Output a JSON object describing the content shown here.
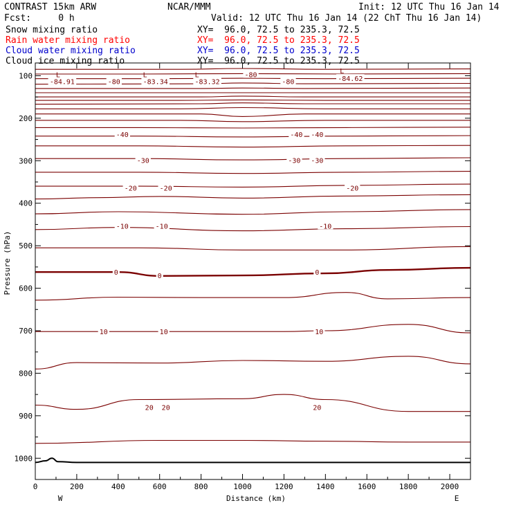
{
  "header": {
    "title": "CONTRAST 15km ARW",
    "org": "NCAR/MMM",
    "init": "Init: 12 UTC Thu 16 Jan 14",
    "fcst": "Fcst:     0 h",
    "valid": "Valid: 12 UTC Thu 16 Jan 14 (22 ChT Thu 16 Jan 14)"
  },
  "fields": [
    {
      "name": "Snow mixing ratio",
      "xy": "XY=  96.0, 72.5 to 235.3, 72.5",
      "color": "#000000"
    },
    {
      "name": "Rain water mixing ratio",
      "xy": "XY=  96.0, 72.5 to 235.3, 72.5",
      "color": "#ff0000"
    },
    {
      "name": "Cloud water mixing ratio",
      "xy": "XY=  96.0, 72.5 to 235.3, 72.5",
      "color": "#0000cc"
    },
    {
      "name": "Cloud ice mixing ratio",
      "xy": "XY=  96.0, 72.5 to 235.3, 72.5",
      "color": "#000000"
    }
  ],
  "chart_data": {
    "type": "line",
    "title": "",
    "xlabel": "Distance (km)",
    "ylabel": "Pressure (hPa)",
    "xlim": [
      0,
      2100
    ],
    "ylim": [
      1050,
      70
    ],
    "xticks": [
      "0",
      "200",
      "400",
      "600",
      "800",
      "1000",
      "1200",
      "1400",
      "1600",
      "1800",
      "2000"
    ],
    "yticks": [
      "100",
      "200",
      "300",
      "400",
      "500",
      "600",
      "700",
      "800",
      "900",
      "1000"
    ],
    "endpoints": {
      "west": "W",
      "east": "E"
    },
    "contour_color": "#7a0000",
    "terrain_color": "#000000",
    "isotherms": [
      {
        "pressure_x": [
          0,
          1000,
          2100
        ],
        "pressure_y": [
          70,
          70,
          70
        ]
      },
      {
        "pressure_x": [
          0,
          700,
          1000,
          1400,
          2100
        ],
        "pressure_y": [
          85,
          85,
          83,
          85,
          84
        ]
      },
      {
        "pressure_x": [
          0,
          500,
          1000,
          1500,
          2100
        ],
        "pressure_y": [
          96,
          96,
          95,
          96,
          95
        ]
      },
      {
        "pressure_x": [
          0,
          600,
          1000,
          1400,
          2100
        ],
        "pressure_y": [
          107,
          107,
          106,
          107,
          106
        ]
      },
      {
        "pressure_x": [
          0,
          800,
          1000,
          1300,
          2100
        ],
        "pressure_y": [
          120,
          119,
          117,
          119,
          118
        ]
      },
      {
        "pressure_x": [
          0,
          800,
          1000,
          1300,
          2100
        ],
        "pressure_y": [
          130,
          130,
          129,
          130,
          129
        ]
      },
      {
        "pressure_x": [
          0,
          600,
          1000,
          1400,
          2100
        ],
        "pressure_y": [
          140,
          140,
          140,
          140,
          140
        ]
      },
      {
        "pressure_x": [
          0,
          800,
          1000,
          1300,
          2100
        ],
        "pressure_y": [
          150,
          150,
          148,
          150,
          150
        ]
      },
      {
        "pressure_x": [
          0,
          700,
          1000,
          1400,
          2100
        ],
        "pressure_y": [
          158,
          158,
          157,
          158,
          158
        ]
      },
      {
        "pressure_x": [
          0,
          800,
          1000,
          1300,
          2100
        ],
        "pressure_y": [
          167,
          166,
          164,
          166,
          166
        ]
      },
      {
        "pressure_x": [
          0,
          700,
          1000,
          1400,
          2100
        ],
        "pressure_y": [
          178,
          178,
          175,
          178,
          178
        ]
      },
      {
        "pressure_x": [
          0,
          800,
          1000,
          1300,
          2100
        ],
        "pressure_y": [
          190,
          190,
          196,
          190,
          190
        ]
      },
      {
        "pressure_x": [
          0,
          700,
          1000,
          1400,
          2100
        ],
        "pressure_y": [
          205,
          205,
          208,
          205,
          205
        ]
      },
      {
        "pressure_x": [
          0,
          500,
          1000,
          1500,
          2100
        ],
        "pressure_y": [
          222,
          222,
          223,
          222,
          221
        ]
      },
      {
        "pressure_x": [
          0,
          500,
          1000,
          1500,
          2100
        ],
        "pressure_y": [
          242,
          242,
          244,
          242,
          241
        ]
      },
      {
        "pressure_x": [
          0,
          500,
          1000,
          1500,
          2100
        ],
        "pressure_y": [
          265,
          265,
          268,
          265,
          264
        ]
      },
      {
        "pressure_x": [
          0,
          500,
          1000,
          1500,
          2100
        ],
        "pressure_y": [
          295,
          295,
          298,
          295,
          293
        ]
      },
      {
        "pressure_x": [
          0,
          500,
          1000,
          1500,
          2100
        ],
        "pressure_y": [
          327,
          327,
          330,
          327,
          325
        ]
      },
      {
        "pressure_x": [
          0,
          500,
          1000,
          1500,
          2100
        ],
        "pressure_y": [
          360,
          360,
          362,
          358,
          355
        ]
      },
      {
        "pressure_x": [
          0,
          300,
          600,
          1000,
          1500,
          2100
        ],
        "pressure_y": [
          390,
          387,
          384,
          388,
          383,
          380
        ]
      },
      {
        "pressure_x": [
          0,
          400,
          1000,
          1500,
          2100
        ],
        "pressure_y": [
          425,
          420,
          426,
          420,
          415
        ]
      },
      {
        "pressure_x": [
          0,
          400,
          1000,
          1500,
          2100
        ],
        "pressure_y": [
          462,
          457,
          465,
          460,
          455
        ]
      },
      {
        "pressure_x": [
          0,
          500,
          1000,
          1500,
          2100
        ],
        "pressure_y": [
          505,
          505,
          510,
          510,
          502
        ]
      },
      {
        "pressure_x": [
          0,
          400,
          600,
          1000,
          1400,
          1700,
          2100
        ],
        "pressure_y": [
          562,
          562,
          571,
          570,
          565,
          557,
          552
        ]
      },
      {
        "pressure_x": [
          0,
          400,
          800,
          1200,
          1500,
          1700,
          2100
        ],
        "pressure_y": [
          628,
          621,
          622,
          622,
          610,
          625,
          622
        ]
      },
      {
        "pressure_x": [
          0,
          400,
          800,
          1200,
          1400,
          1800,
          2100
        ],
        "pressure_y": [
          702,
          702,
          702,
          702,
          700,
          685,
          705
        ]
      },
      {
        "pressure_x": [
          0,
          200,
          600,
          1000,
          1400,
          1800,
          2100
        ],
        "pressure_y": [
          790,
          775,
          776,
          770,
          772,
          760,
          778
        ]
      },
      {
        "pressure_x": [
          0,
          200,
          500,
          1000,
          1200,
          1400,
          1800,
          2100
        ],
        "pressure_y": [
          875,
          885,
          862,
          860,
          850,
          862,
          890,
          890
        ]
      },
      {
        "pressure_x": [
          0,
          600,
          1000,
          1400,
          1800,
          2100
        ],
        "pressure_y": [
          965,
          958,
          958,
          960,
          962,
          962
        ]
      }
    ],
    "terrain": {
      "x": [
        0,
        50,
        80,
        110,
        200,
        500,
        800,
        1500,
        2100
      ],
      "pressure": [
        1010,
        1006,
        1000,
        1008,
        1010,
        1010,
        1010,
        1010,
        1010
      ]
    },
    "contour_labels": [
      {
        "text": "-84.91",
        "x": 130,
        "p": 113
      },
      {
        "text": "-80",
        "x": 380,
        "p": 113
      },
      {
        "text": "-83.34",
        "x": 580,
        "p": 113
      },
      {
        "text": "-83.32",
        "x": 830,
        "p": 113
      },
      {
        "text": "-80",
        "x": 1040,
        "p": 97
      },
      {
        "text": "-80",
        "x": 1220,
        "p": 113
      },
      {
        "text": "-84.62",
        "x": 1520,
        "p": 106
      },
      {
        "text": "-40",
        "x": 420,
        "p": 238
      },
      {
        "text": "-40",
        "x": 1260,
        "p": 238
      },
      {
        "text": "-40",
        "x": 1360,
        "p": 238
      },
      {
        "text": "-30",
        "x": 520,
        "p": 299
      },
      {
        "text": "-30",
        "x": 1250,
        "p": 299
      },
      {
        "text": "-30",
        "x": 1360,
        "p": 299
      },
      {
        "text": "-20",
        "x": 460,
        "p": 364
      },
      {
        "text": "-20",
        "x": 630,
        "p": 364
      },
      {
        "text": "-20",
        "x": 1530,
        "p": 364
      },
      {
        "text": "-10",
        "x": 420,
        "p": 453
      },
      {
        "text": "-10",
        "x": 610,
        "p": 453
      },
      {
        "text": "-10",
        "x": 1400,
        "p": 453
      },
      {
        "text": "0",
        "x": 390,
        "p": 562
      },
      {
        "text": "0",
        "x": 600,
        "p": 570
      },
      {
        "text": "0",
        "x": 1360,
        "p": 562
      },
      {
        "text": "10",
        "x": 330,
        "p": 702
      },
      {
        "text": "10",
        "x": 620,
        "p": 702
      },
      {
        "text": "10",
        "x": 1370,
        "p": 702
      },
      {
        "text": "20",
        "x": 550,
        "p": 880
      },
      {
        "text": "20",
        "x": 630,
        "p": 880
      },
      {
        "text": "20",
        "x": 1360,
        "p": 880
      }
    ],
    "low_markers": [
      {
        "text": "L",
        "x": 110,
        "p": 97
      },
      {
        "text": "L",
        "x": 530,
        "p": 97
      },
      {
        "text": "L",
        "x": 780,
        "p": 97
      },
      {
        "text": "L",
        "x": 1480,
        "p": 88
      }
    ]
  }
}
